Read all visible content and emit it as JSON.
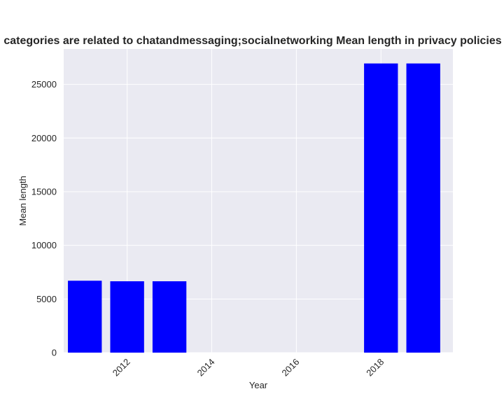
{
  "chart_data": {
    "type": "bar",
    "title": "categories are related to chatandmessaging;socialnetworking Mean length in privacy policies",
    "xlabel": "Year",
    "ylabel": "Mean length",
    "x": [
      2011,
      2012,
      2013,
      2018,
      2019
    ],
    "values": [
      6700,
      6650,
      6650,
      26950,
      26950
    ],
    "xlim": [
      2010.5,
      2019.7
    ],
    "ylim": [
      0,
      28300
    ],
    "xticks": [
      "2012",
      "2014",
      "2016",
      "2018"
    ],
    "yticks": [
      "0",
      "5000",
      "10000",
      "15000",
      "20000",
      "25000"
    ],
    "bar_color": "#0000ff",
    "plot_background": "#eaeaf2",
    "grid": true,
    "legend": false
  }
}
